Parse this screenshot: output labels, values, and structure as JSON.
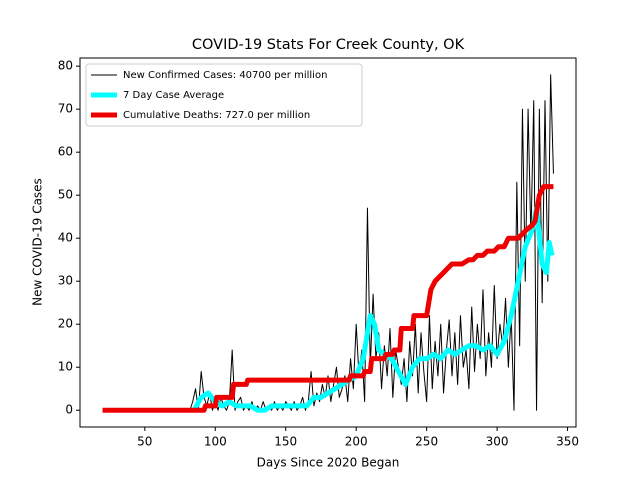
{
  "chart_data": {
    "type": "line",
    "title": "COVID-19 Stats For Creek County, OK",
    "x_label": "Days Since 2020 Began",
    "y_label": "New COVID-19 Cases",
    "xlim": [
      4,
      356
    ],
    "ylim": [
      -3.9,
      81.9
    ],
    "xticks": [
      50,
      100,
      150,
      200,
      250,
      300,
      350
    ],
    "yticks": [
      0,
      10,
      20,
      30,
      40,
      50,
      60,
      70,
      80
    ],
    "legend": "upper left",
    "series": [
      {
        "name": "New Confirmed Cases: 40700 per million",
        "color": "#000000",
        "width": 1,
        "x": [
          20,
          82,
          84,
          86,
          88,
          90,
          92,
          94,
          96,
          98,
          100,
          102,
          104,
          106,
          108,
          110,
          112,
          114,
          116,
          118,
          120,
          122,
          124,
          126,
          128,
          130,
          132,
          134,
          136,
          138,
          140,
          142,
          144,
          146,
          148,
          150,
          152,
          154,
          156,
          158,
          160,
          162,
          164,
          166,
          168,
          170,
          172,
          174,
          176,
          178,
          180,
          182,
          184,
          186,
          188,
          190,
          192,
          194,
          196,
          198,
          200,
          202,
          204,
          206,
          208,
          210,
          212,
          214,
          216,
          218,
          220,
          222,
          224,
          226,
          228,
          230,
          232,
          234,
          236,
          238,
          240,
          242,
          244,
          246,
          248,
          250,
          252,
          254,
          256,
          258,
          260,
          262,
          264,
          266,
          268,
          270,
          272,
          274,
          276,
          278,
          280,
          282,
          284,
          286,
          288,
          290,
          292,
          294,
          296,
          298,
          300,
          302,
          304,
          306,
          308,
          310,
          312,
          314,
          316,
          318,
          320,
          322,
          324,
          326,
          328,
          330,
          332,
          334,
          336,
          338,
          340
        ],
        "values": [
          0,
          0,
          2,
          5,
          0,
          9,
          3,
          1,
          4,
          0,
          2,
          0,
          3,
          1,
          0,
          2,
          14,
          0,
          2,
          3,
          0,
          1,
          0,
          2,
          0,
          1,
          0,
          2,
          0,
          1,
          0,
          2,
          0,
          1,
          0,
          2,
          1,
          0,
          2,
          0,
          1,
          3,
          0,
          2,
          9,
          1,
          4,
          2,
          6,
          3,
          8,
          2,
          6,
          10,
          3,
          5,
          8,
          2,
          12,
          5,
          20,
          8,
          14,
          2,
          47,
          10,
          27,
          12,
          18,
          5,
          15,
          8,
          19,
          3,
          14,
          10,
          6,
          12,
          2,
          16,
          8,
          20,
          4,
          18,
          9,
          2,
          22,
          5,
          16,
          8,
          20,
          4,
          14,
          21,
          8,
          18,
          6,
          22,
          10,
          14,
          5,
          24,
          9,
          20,
          12,
          28,
          8,
          18,
          10,
          29,
          12,
          20,
          15,
          26,
          10,
          22,
          0,
          53,
          15,
          70,
          30,
          70,
          40,
          72,
          0,
          70,
          25,
          72,
          30,
          78,
          55
        ]
      },
      {
        "name": "7 Day Case Average",
        "color": "#00ffff",
        "width": 5,
        "x": [
          85,
          90,
          95,
          100,
          105,
          110,
          115,
          120,
          125,
          130,
          135,
          140,
          145,
          150,
          155,
          160,
          165,
          170,
          175,
          180,
          185,
          190,
          195,
          200,
          205,
          210,
          213,
          216,
          220,
          225,
          230,
          235,
          240,
          245,
          250,
          255,
          260,
          265,
          270,
          275,
          280,
          285,
          290,
          295,
          300,
          305,
          310,
          315,
          320,
          325,
          328,
          332,
          335,
          337,
          339
        ],
        "values": [
          0,
          3,
          4,
          2,
          1,
          2,
          1,
          1,
          1,
          0,
          0,
          1,
          1,
          1,
          1,
          1,
          1,
          3,
          3,
          4,
          5,
          6,
          7,
          8,
          12,
          22,
          20,
          14,
          13,
          12,
          9,
          6,
          10,
          12,
          12,
          13,
          12,
          14,
          13,
          14,
          15,
          15,
          14,
          15,
          13,
          16,
          22,
          30,
          38,
          42,
          47,
          34,
          32,
          39,
          36
        ]
      },
      {
        "name": "Cumulative Deaths: 727.0 per million",
        "color": "#ee0000",
        "width": 5,
        "x": [
          20,
          92,
          93,
          100,
          101,
          112,
          113,
          122,
          123,
          195,
          196,
          205,
          206,
          210,
          211,
          220,
          221,
          226,
          227,
          231,
          232,
          240,
          241,
          250,
          253,
          256,
          259,
          262,
          265,
          268,
          275,
          280,
          283,
          286,
          290,
          293,
          298,
          301,
          305,
          308,
          315,
          318,
          321,
          325,
          327,
          330,
          333,
          340
        ],
        "values": [
          0,
          0,
          1,
          1,
          3,
          3,
          6,
          6,
          7,
          7,
          8,
          8,
          9,
          9,
          12,
          12,
          13,
          13,
          14,
          14,
          19,
          19,
          22,
          22,
          28,
          30,
          31,
          32,
          33,
          34,
          34,
          35,
          35,
          36,
          36,
          37,
          37,
          38,
          38,
          40,
          40,
          41,
          42,
          43,
          44,
          50,
          52,
          52
        ]
      }
    ]
  }
}
